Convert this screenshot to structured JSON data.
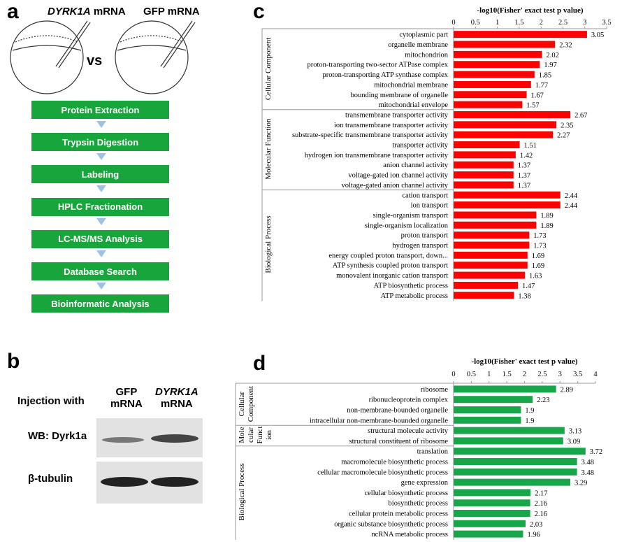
{
  "panels": {
    "a": "a",
    "b": "b",
    "c": "c",
    "d": "d"
  },
  "panel_a": {
    "left_label_gene": "DYRK1A",
    "left_label_suffix": " mRNA",
    "right_label": "GFP mRNA",
    "vs": "vs",
    "steps": [
      "Protein Extraction",
      "Trypsin Digestion",
      "Labeling",
      "HPLC Fractionation",
      "LC-MS/MS Analysis",
      "Database Search",
      "Bioinformatic Analysis"
    ],
    "step_color": "#18a63c",
    "arrow_color": "#9cc3e6"
  },
  "panel_b": {
    "injection_label": "Injection with",
    "col1_line1": "GFP",
    "col1_line2": "mRNA",
    "col2_line1": "DYRK1A",
    "col2_line2": "mRNA",
    "row1": "WB: Dyrk1a",
    "row2": "β-tubulin"
  },
  "chart_data": [
    {
      "type": "bar",
      "orientation": "horizontal",
      "title": "-log10(Fisher' exact test p value)",
      "xlim": [
        0,
        3.5
      ],
      "xticks": [
        "0",
        "0.5",
        "1",
        "1.5",
        "2",
        "2.5",
        "3",
        "3.5"
      ],
      "color": "#ff0000",
      "groups": [
        {
          "name": "Cellular Component",
          "categories": [
            "cytoplasmic part",
            "organelle membrane",
            "mitochondrion",
            "proton-transporting two-sector ATPase complex",
            "proton-transporting ATP synthase complex",
            "mitochondrial membrane",
            "bounding membrane of organelle",
            "mitochondrial envelope"
          ],
          "values": [
            3.05,
            2.32,
            2.02,
            1.97,
            1.85,
            1.77,
            1.67,
            1.57
          ]
        },
        {
          "name": "Molecular Function",
          "categories": [
            "transmembrane transporter activity",
            "ion transmembrane transporter activity",
            "substrate-specific transmembrane transporter activity",
            "transporter activity",
            "hydrogen ion transmembrane transporter activity",
            "anion channel activity",
            "voltage-gated ion channel activity",
            "voltage-gated anion channel activity"
          ],
          "values": [
            2.67,
            2.35,
            2.27,
            1.51,
            1.42,
            1.37,
            1.37,
            1.37
          ]
        },
        {
          "name": "Biological Process",
          "categories": [
            "cation transport",
            "ion transport",
            "single-organism transport",
            "single-organism localization",
            "proton transport",
            "hydrogen transport",
            "energy coupled proton transport, down...",
            "ATP synthesis coupled proton transport",
            "monovalent inorganic cation transport",
            "ATP biosynthetic process",
            "ATP metabolic process"
          ],
          "values": [
            2.44,
            2.44,
            1.89,
            1.89,
            1.73,
            1.73,
            1.69,
            1.69,
            1.63,
            1.47,
            1.38
          ]
        }
      ]
    },
    {
      "type": "bar",
      "orientation": "horizontal",
      "title": "-log10(Fisher' exact test p value)",
      "xlim": [
        0,
        4
      ],
      "xticks": [
        "0",
        "0.5",
        "1",
        "1.5",
        "2",
        "2.5",
        "3",
        "3.5",
        "4"
      ],
      "color": "#18a64a",
      "groups": [
        {
          "name": "Cellular Component",
          "name_lines": [
            "Cellular",
            "Component"
          ],
          "categories": [
            "ribosome",
            "ribonucleoprotein complex",
            "non-membrane-bounded organelle",
            "intracellular non-membrane-bounded organelle"
          ],
          "values": [
            2.89,
            2.23,
            1.9,
            1.9
          ]
        },
        {
          "name": "Molecular Function",
          "name_lines": [
            "Mole",
            "cular",
            "Funct",
            "ion"
          ],
          "categories": [
            "structural molecule activity",
            "structural constituent of ribosome"
          ],
          "values": [
            3.13,
            3.09
          ]
        },
        {
          "name": "Biological Process",
          "categories": [
            "translation",
            "macromolecule biosynthetic process",
            "cellular macromolecule biosynthetic process",
            "gene expression",
            "cellular biosynthetic process",
            "biosynthetic process",
            "cellular protein metabolic process",
            "organic substance biosynthetic process",
            "ncRNA metabolic process"
          ],
          "values": [
            3.72,
            3.48,
            3.48,
            3.29,
            2.17,
            2.16,
            2.16,
            2.03,
            1.96
          ]
        }
      ]
    }
  ]
}
